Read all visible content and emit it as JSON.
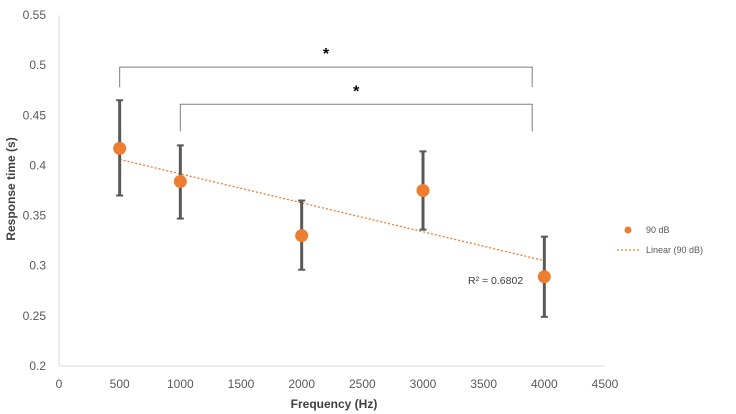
{
  "chart_data": {
    "type": "scatter",
    "title": "",
    "xlabel": "Frequency (Hz)",
    "ylabel": "Response time (s)",
    "xlim": [
      0,
      4500
    ],
    "ylim": [
      0.2,
      0.55
    ],
    "xticks": [
      "0",
      "500",
      "1000",
      "1500",
      "2000",
      "2500",
      "3000",
      "3500",
      "4000",
      "4500"
    ],
    "yticks": [
      "0.2",
      "0.25",
      "0.3",
      "0.35",
      "0.4",
      "0.45",
      "0.5",
      "0.55"
    ],
    "grid": false,
    "legend_position": "right",
    "series": [
      {
        "name": "90 dB",
        "color": "#ED7D31",
        "x": [
          500,
          1000,
          2000,
          3000,
          4000
        ],
        "y": [
          0.417,
          0.384,
          0.33,
          0.375,
          0.289
        ],
        "error_low": [
          0.37,
          0.347,
          0.296,
          0.336,
          0.249
        ],
        "error_high": [
          0.465,
          0.42,
          0.365,
          0.414,
          0.329
        ]
      }
    ],
    "trendline": {
      "name": "Linear (90 dB)",
      "kind": "linear",
      "color": "#ED7D31",
      "x": [
        500,
        4000
      ],
      "y": [
        0.406,
        0.305
      ],
      "r2_label": "R² = 0.6802"
    },
    "significance_brackets": [
      {
        "x_start": 500,
        "x_end": 3900,
        "y_top": 0.498,
        "y_bottom": 0.478,
        "label": "*"
      },
      {
        "x_start": 1000,
        "x_end": 3900,
        "y_top": 0.461,
        "y_bottom": 0.434,
        "label": "*"
      }
    ]
  }
}
